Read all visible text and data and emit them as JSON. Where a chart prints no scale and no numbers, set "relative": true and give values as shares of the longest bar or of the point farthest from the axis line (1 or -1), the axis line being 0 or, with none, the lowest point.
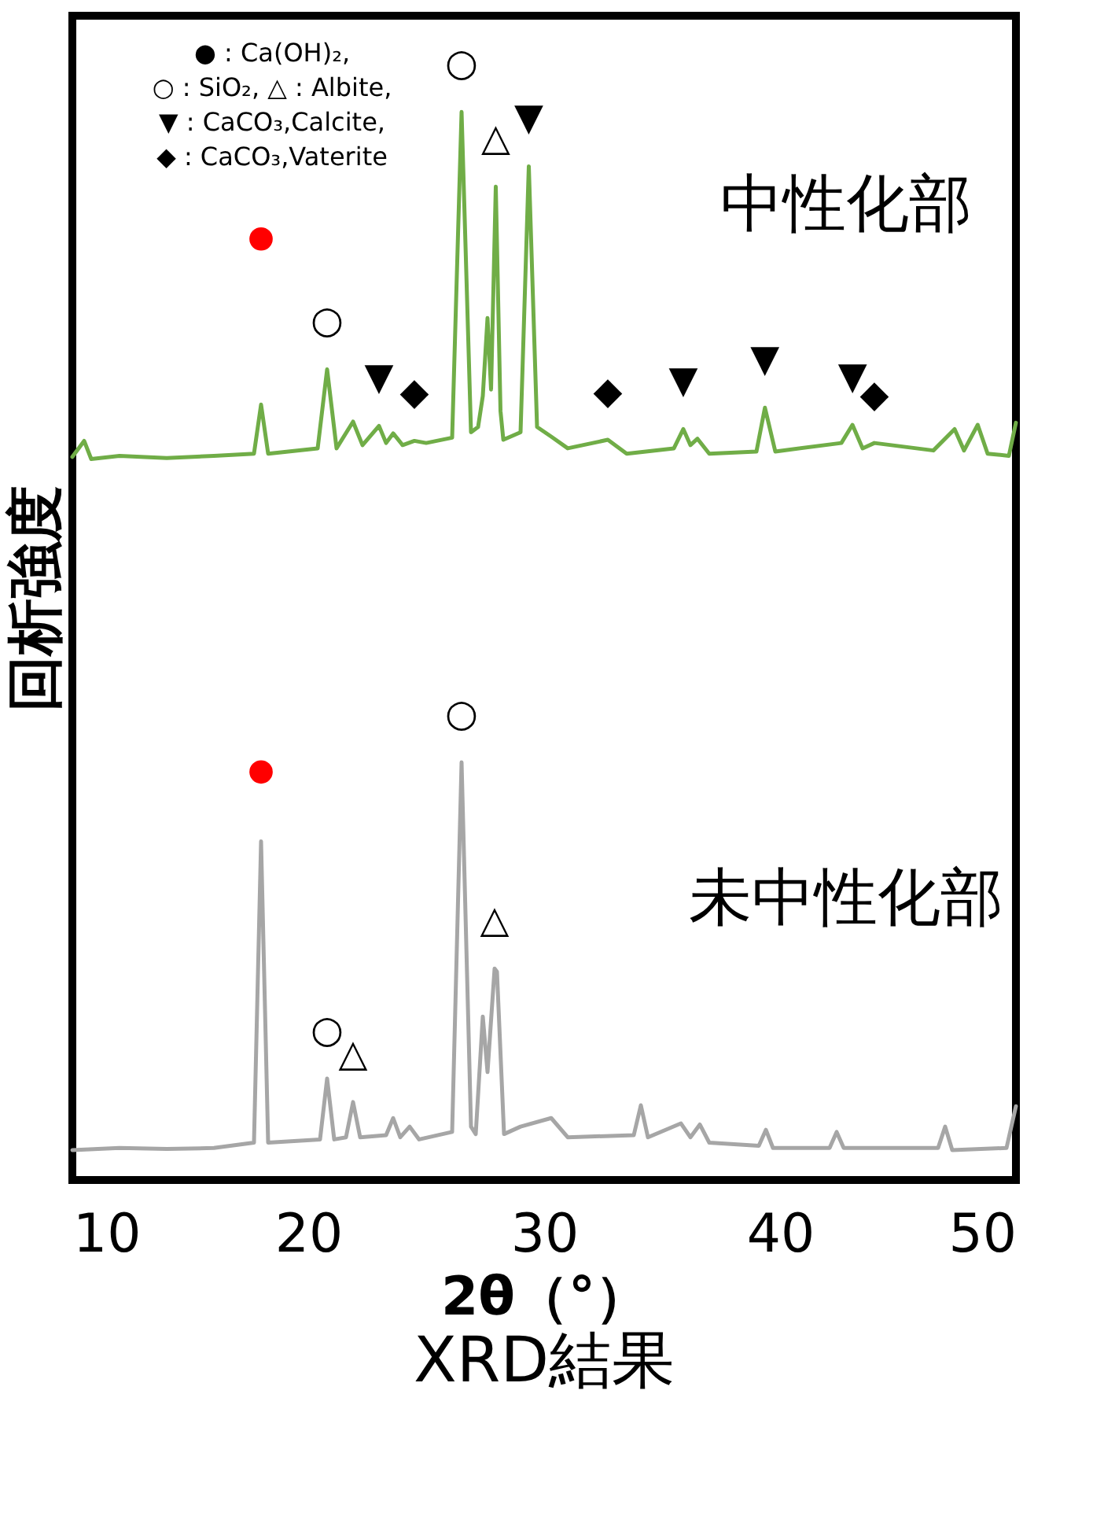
{
  "chart_data": {
    "type": "line",
    "title": "XRD結果",
    "xlabel": "2θ（°）",
    "ylabel": "回析強度",
    "relative": true,
    "xlim": [
      10,
      50
    ],
    "xticks": [
      10,
      20,
      30,
      40,
      50
    ],
    "series": [
      {
        "name": "中性化部",
        "color": "#70ad47",
        "x": [
          10,
          10.5,
          10.8,
          12,
          14,
          16,
          17.7,
          18.0,
          18.3,
          20.4,
          20.8,
          21.2,
          21.9,
          22.3,
          23.0,
          23.3,
          23.6,
          24.0,
          24.5,
          25,
          26.1,
          26.5,
          26.9,
          27.2,
          27.4,
          27.6,
          27.75,
          27.95,
          28.15,
          28.27,
          29.0,
          29.35,
          29.7,
          30.3,
          31,
          32.7,
          33.5,
          35.5,
          35.9,
          36.2,
          36.5,
          37,
          39.0,
          39.36,
          39.8,
          42.6,
          43.07,
          43.5,
          44.0,
          46.5,
          47.4,
          47.8,
          48.38,
          48.8,
          49.7,
          50
        ],
        "values": [
          0.677,
          0.692,
          0.675,
          0.678,
          0.676,
          0.678,
          0.68,
          0.726,
          0.68,
          0.685,
          0.759,
          0.685,
          0.71,
          0.688,
          0.706,
          0.69,
          0.699,
          0.688,
          0.692,
          0.69,
          0.695,
          1.0,
          0.7,
          0.705,
          0.734,
          0.807,
          0.74,
          0.93,
          0.72,
          0.693,
          0.7,
          0.949,
          0.705,
          0.696,
          0.685,
          0.693,
          0.68,
          0.685,
          0.703,
          0.688,
          0.694,
          0.68,
          0.682,
          0.723,
          0.682,
          0.69,
          0.707,
          0.685,
          0.69,
          0.683,
          0.703,
          0.683,
          0.707,
          0.68,
          0.678,
          0.709
        ]
      },
      {
        "name": "未中性化部",
        "color": "#a6a6a6",
        "x": [
          10,
          12,
          14,
          16,
          17.7,
          18.0,
          18.3,
          20.5,
          20.8,
          21.1,
          21.6,
          21.9,
          22.2,
          23.3,
          23.6,
          23.9,
          24.3,
          24.7,
          26.1,
          26.5,
          26.9,
          27.1,
          27.4,
          27.6,
          27.9,
          28.0,
          28.3,
          29,
          30.3,
          31,
          33.8,
          34.1,
          34.4,
          35.8,
          36.2,
          36.6,
          37,
          39.1,
          39.4,
          39.7,
          42.1,
          42.4,
          42.7,
          46.7,
          47.0,
          47.3,
          49.6,
          50
        ],
        "values": [
          0.028,
          0.03,
          0.029,
          0.03,
          0.035,
          0.317,
          0.035,
          0.038,
          0.095,
          0.038,
          0.04,
          0.073,
          0.04,
          0.042,
          0.058,
          0.04,
          0.05,
          0.038,
          0.045,
          0.391,
          0.05,
          0.043,
          0.153,
          0.101,
          0.198,
          0.195,
          0.043,
          0.05,
          0.058,
          0.04,
          0.042,
          0.07,
          0.04,
          0.053,
          0.04,
          0.052,
          0.035,
          0.032,
          0.047,
          0.03,
          0.03,
          0.045,
          0.03,
          0.03,
          0.05,
          0.028,
          0.03,
          0.069
        ]
      },
      {
        "color": "#ff0000",
        "type": "scatter",
        "marker": "circle",
        "x": [
          18.0,
          18.0
        ],
        "values": [
          0.881,
          0.382
        ]
      }
    ],
    "annotations": [
      "● : Ca(OH)₂,",
      "○ : SiO₂,  △ : Albite,",
      "▼ : CaCO₃,Calcite,",
      "◆ : CaCO₃,Vaterite",
      {
        "text": "○",
        "x": 26.5,
        "y": 1.0
      },
      {
        "text": "△",
        "x": 27.95,
        "y": 0.93
      },
      {
        "text": "▼",
        "x": 29.35,
        "y": 0.949
      },
      {
        "text": "○",
        "x": 20.8,
        "y": 0.759
      },
      {
        "text": "▼",
        "x": 23.0,
        "y": 0.706
      },
      {
        "text": "◆",
        "x": 24.5,
        "y": 0.692
      },
      {
        "text": "◆",
        "x": 32.7,
        "y": 0.693
      },
      {
        "text": "▼",
        "x": 35.9,
        "y": 0.703
      },
      {
        "text": "▼",
        "x": 39.36,
        "y": 0.723
      },
      {
        "text": "▼",
        "x": 43.07,
        "y": 0.707
      },
      {
        "text": "◆",
        "x": 44.0,
        "y": 0.69
      },
      {
        "text": "○",
        "x": 26.5,
        "y": 0.391
      },
      {
        "text": "△",
        "x": 27.9,
        "y": 0.198
      },
      {
        "text": "○",
        "x": 20.8,
        "y": 0.095
      },
      {
        "text": "△",
        "x": 21.9,
        "y": 0.073
      }
    ]
  }
}
